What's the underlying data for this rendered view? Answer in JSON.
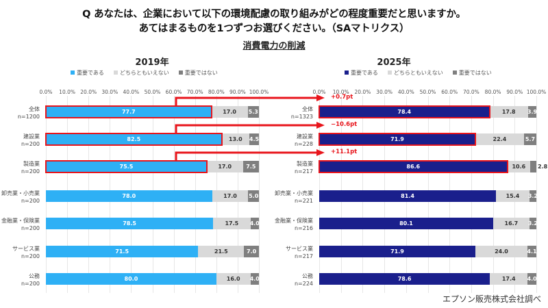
{
  "question": {
    "line1": "Q あなたは、企業において以下の環境配慮の取り組みがどの程度重要だと思いますか。",
    "line2": "あてはまるものを1つずつお選びください。（SAマトリクス）"
  },
  "subtitle": "消費電力の削減",
  "source": "エプソン販売株式会社調べ",
  "colors": {
    "important_2019": "#2eb0f5",
    "important_2025": "#1a1f8c",
    "neutral": "#d9d9d9",
    "not_important": "#7f7f7f",
    "highlight": "#e8141b"
  },
  "chart_data": [
    {
      "type": "bar",
      "orientation": "horizontal",
      "stacked": true,
      "title": "2019年",
      "legend": [
        "重要である",
        "どちらともいえない",
        "重要ではない"
      ],
      "legend_position": "top",
      "xlim": [
        0,
        100
      ],
      "x_ticks": [
        "0.0%",
        "10.0%",
        "20.0%",
        "30.0%",
        "40.0%",
        "50.0%",
        "60.0%",
        "70.0%",
        "80.0%",
        "90.0%",
        "100.0%"
      ],
      "grid": true,
      "categories": [
        {
          "name": "全体",
          "n": "n=1200"
        },
        {
          "name": "建設業",
          "n": "n=200"
        },
        {
          "name": "製造業",
          "n": "n=200"
        },
        {
          "name": "卸売業・小売業",
          "n": "n=200"
        },
        {
          "name": "金融業・保険業",
          "n": "n=200"
        },
        {
          "name": "サービス業",
          "n": "n=200"
        },
        {
          "name": "公務",
          "n": "n=200"
        }
      ],
      "series": [
        {
          "name": "重要である",
          "values": [
            77.7,
            82.5,
            75.5,
            78.0,
            78.5,
            71.5,
            80.0
          ]
        },
        {
          "name": "どちらともいえない",
          "values": [
            17.0,
            13.0,
            17.0,
            17.0,
            17.5,
            21.5,
            16.0
          ]
        },
        {
          "name": "重要ではない",
          "values": [
            5.3,
            4.5,
            7.5,
            5.0,
            4.0,
            7.0,
            4.0
          ]
        }
      ],
      "highlighted_rows": [
        0,
        1,
        2
      ]
    },
    {
      "type": "bar",
      "orientation": "horizontal",
      "stacked": true,
      "title": "2025年",
      "legend": [
        "重要である",
        "どちらともいえない",
        "重要ではない"
      ],
      "legend_position": "top",
      "xlim": [
        0,
        100
      ],
      "x_ticks": [
        "0.0%",
        "10.0%",
        "20.0%",
        "30.0%",
        "40.0%",
        "50.0%",
        "60.0%",
        "70.0%",
        "80.0%",
        "90.0%",
        "100.0%"
      ],
      "grid": true,
      "categories": [
        {
          "name": "全体",
          "n": "n=1323"
        },
        {
          "name": "建設業",
          "n": "n=228"
        },
        {
          "name": "製造業",
          "n": "n=217"
        },
        {
          "name": "卸売業・小売業",
          "n": "n=221"
        },
        {
          "name": "金融業・保険業",
          "n": "n=216"
        },
        {
          "name": "サービス業",
          "n": "n=217"
        },
        {
          "name": "公務",
          "n": "n=224"
        }
      ],
      "series": [
        {
          "name": "重要である",
          "values": [
            78.4,
            71.9,
            86.6,
            81.4,
            80.1,
            71.9,
            78.6
          ]
        },
        {
          "name": "どちらともいえない",
          "values": [
            17.8,
            22.4,
            10.6,
            15.4,
            16.7,
            24.0,
            17.4
          ]
        },
        {
          "name": "重要ではない",
          "values": [
            3.9,
            5.7,
            2.8,
            3.2,
            3.2,
            4.1,
            4.0
          ]
        }
      ],
      "highlighted_rows": [
        0,
        1,
        2
      ]
    }
  ],
  "annotations": [
    {
      "row": 0,
      "text": "+0.7pt"
    },
    {
      "row": 1,
      "text": "−10.6pt"
    },
    {
      "row": 2,
      "text": "+11.1pt"
    }
  ]
}
